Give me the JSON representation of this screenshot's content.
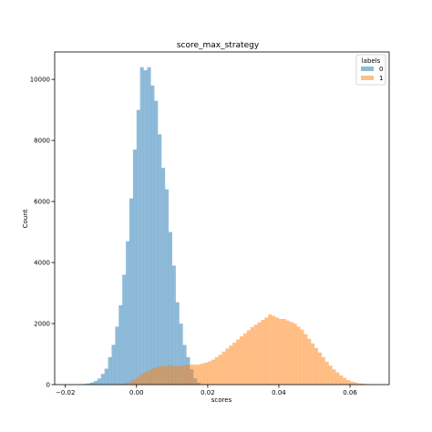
{
  "chart_data": {
    "type": "histogram",
    "title": "score_max_strategy",
    "xlabel": "scores",
    "ylabel": "Count",
    "xlim": [
      -0.023,
      0.071
    ],
    "ylim": [
      0,
      10900
    ],
    "xticks": [
      -0.02,
      0.0,
      0.02,
      0.04,
      0.06
    ],
    "xtick_labels": [
      "−0.02",
      "0.00",
      "0.02",
      "0.04",
      "0.06"
    ],
    "yticks": [
      0,
      2000,
      4000,
      6000,
      8000,
      10000
    ],
    "ytick_labels": [
      "0",
      "2000",
      "4000",
      "6000",
      "8000",
      "10000"
    ],
    "grid": false,
    "legend": {
      "title": "labels",
      "placement": "top-right",
      "entries": [
        {
          "label": "0",
          "color": "#1f77b4"
        },
        {
          "label": "1",
          "color": "#ff7f0e"
        }
      ]
    },
    "alpha": 0.5,
    "series": [
      {
        "label": "0",
        "color": "#1f77b4",
        "bin_edges": [
          -0.016,
          -0.015,
          -0.014,
          -0.013,
          -0.012,
          -0.011,
          -0.01,
          -0.009,
          -0.008,
          -0.007,
          -0.006,
          -0.005,
          -0.004,
          -0.003,
          -0.002,
          -0.001,
          0.0,
          0.001,
          0.002,
          0.003,
          0.004,
          0.005,
          0.006,
          0.007,
          0.008,
          0.009,
          0.01,
          0.011,
          0.012,
          0.013,
          0.014,
          0.015,
          0.016,
          0.017,
          0.018
        ],
        "counts": [
          10,
          20,
          40,
          70,
          120,
          200,
          350,
          520,
          900,
          1300,
          1900,
          2600,
          3600,
          4700,
          6100,
          7700,
          9000,
          10400,
          10300,
          10400,
          9800,
          9300,
          8200,
          7100,
          6400,
          5000,
          3900,
          2700,
          2000,
          1300,
          900,
          500,
          200,
          60
        ]
      },
      {
        "label": "1",
        "color": "#ff7f0e",
        "bin_edges": [
          -0.004,
          -0.003,
          -0.002,
          -0.001,
          0.0,
          0.001,
          0.002,
          0.003,
          0.004,
          0.005,
          0.006,
          0.007,
          0.008,
          0.009,
          0.01,
          0.011,
          0.012,
          0.013,
          0.014,
          0.015,
          0.016,
          0.017,
          0.018,
          0.019,
          0.02,
          0.021,
          0.022,
          0.023,
          0.024,
          0.025,
          0.026,
          0.027,
          0.028,
          0.029,
          0.03,
          0.031,
          0.032,
          0.033,
          0.034,
          0.035,
          0.036,
          0.037,
          0.038,
          0.039,
          0.04,
          0.041,
          0.042,
          0.043,
          0.044,
          0.045,
          0.046,
          0.047,
          0.048,
          0.049,
          0.05,
          0.051,
          0.052,
          0.053,
          0.054,
          0.055,
          0.056,
          0.057,
          0.058,
          0.059,
          0.06,
          0.061,
          0.062,
          0.063,
          0.064,
          0.065,
          0.066,
          0.067
        ],
        "counts": [
          20,
          60,
          120,
          180,
          260,
          340,
          400,
          460,
          520,
          560,
          600,
          610,
          620,
          640,
          600,
          620,
          610,
          640,
          650,
          660,
          650,
          660,
          690,
          720,
          760,
          820,
          900,
          980,
          1080,
          1180,
          1280,
          1380,
          1480,
          1580,
          1680,
          1780,
          1880,
          1960,
          2040,
          2120,
          2200,
          2300,
          2250,
          2200,
          2150,
          2150,
          2100,
          2050,
          2000,
          1900,
          1800,
          1650,
          1500,
          1350,
          1200,
          1050,
          900,
          750,
          620,
          500,
          400,
          300,
          220,
          150,
          100,
          70,
          45,
          30,
          20,
          12,
          8
        ]
      }
    ]
  }
}
